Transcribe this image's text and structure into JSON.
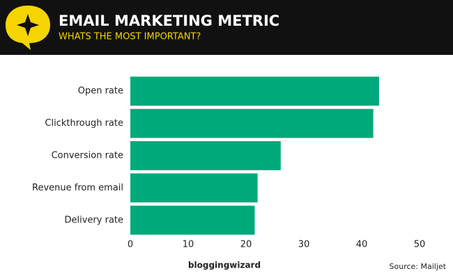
{
  "chart_data": {
    "type": "hbar",
    "title": "EMAIL MARKETING METRIC",
    "subtitle": "WHATS THE MOST IMPORTANT?",
    "categories": [
      "Open rate",
      "Clickthrough rate",
      "Conversion rate",
      "Revenue from email",
      "Delivery rate"
    ],
    "values": [
      43,
      42,
      26,
      22,
      21.5
    ],
    "color": "#00a97a",
    "xlim": [
      0,
      50
    ],
    "xticks": [
      0,
      10,
      20,
      30,
      40,
      50
    ],
    "grid": false,
    "source": "Source: Mailjet",
    "brand": "bloggingwizard"
  }
}
